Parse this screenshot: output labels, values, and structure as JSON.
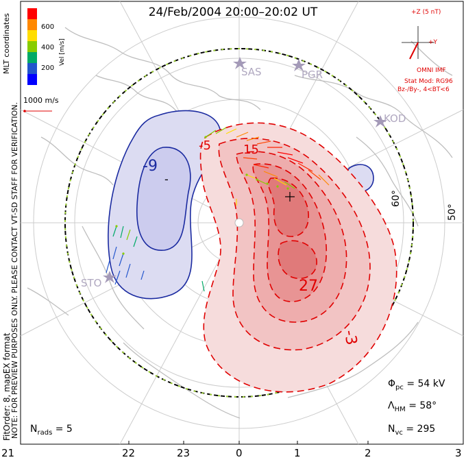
{
  "title": "24/Feb/2004 20:00–20:02 UT",
  "side_labels": {
    "coords": "MLT coordinates",
    "note": "NOTE: FOR PREVIEW PURPOSES ONLY. PLEASE CONTACT VT-SD STAFF FOR VERIFICATION.",
    "fit": "FitOrder: 8, mapEX format"
  },
  "colorbar": {
    "title": "Vel [m/s]",
    "ticks": [
      "600",
      "400",
      "200"
    ],
    "colors": [
      "#0000ff",
      "#2255cc",
      "#00aa66",
      "#88cc00",
      "#ffdd00",
      "#ff8800",
      "#ff0000"
    ]
  },
  "scale_vector": "1000 m/s",
  "imf": {
    "z_label": "+Z (5 nT)",
    "y_label": "+Y",
    "source": "OMNI IMF",
    "model": "Stat Mod: RG96",
    "condition": "Bz-/By-, 4<BT<6"
  },
  "stations": [
    "SAS",
    "PGR",
    "KOD",
    "STO"
  ],
  "latitudes": [
    "60°",
    "50°"
  ],
  "contour_labels": [
    "-9",
    "-",
    "-5",
    "+",
    "27",
    "-3",
    "15"
  ],
  "stats": {
    "phi_label": "Φ",
    "phi_sub": "pc",
    "phi_value": "= 54 kV",
    "lam_label": "Λ",
    "lam_sub": "HM",
    "lam_value": "= 58°",
    "n_label": "N",
    "n_sub": "vc",
    "n_value": "= 295",
    "nrads_label": "N",
    "nrads_sub": "rads",
    "nrads_value": "= 5"
  },
  "mlt_ticks": [
    "21",
    "22",
    "23",
    "0",
    "1",
    "2",
    "3"
  ],
  "colors": {
    "positive": "#e00000",
    "negative": "#1a2aa0",
    "land": "#bdbdbd",
    "grid": "#cccccc"
  }
}
